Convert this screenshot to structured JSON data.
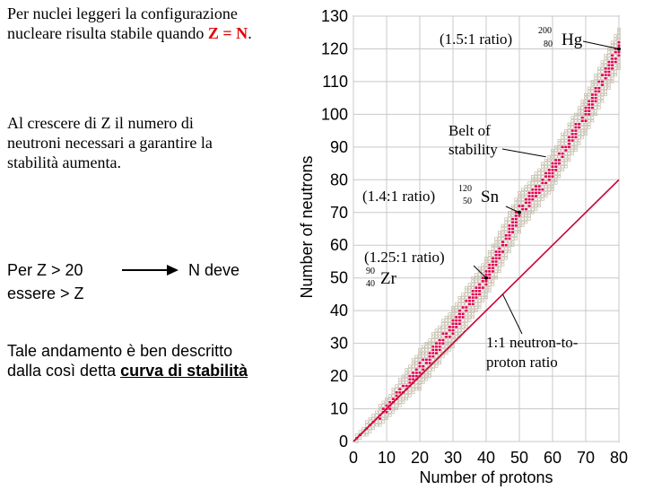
{
  "left_panel": {
    "p1_text": "Per nuclei leggeri la configurazione nucleare risulta stabile quando",
    "p1_highlight": "Z = N",
    "p1_end": ".",
    "p2_text": "Al crescere di Z il numero di neutroni necessari a garantire la stabilità aumenta.",
    "p3_left": "Per Z > 20",
    "p3_right": "N deve",
    "p3_end": "essere > Z",
    "p4_text": "Tale andamento è ben descritto dalla così detta",
    "p4_link": "curva di stabilità"
  },
  "colors": {
    "stable_nuclide": "#e0004e",
    "unstable_nuclide": "#b9b09b",
    "line_1_1": "#cc0033",
    "highlight_text": "#e00000"
  },
  "chart_data": {
    "type": "scatter",
    "xlabel": "Number of protons",
    "ylabel": "Number of neutrons",
    "xlim": [
      0,
      80
    ],
    "ylim": [
      0,
      130
    ],
    "xticks": [
      0,
      10,
      20,
      30,
      40,
      50,
      60,
      70,
      80
    ],
    "yticks": [
      0,
      10,
      20,
      30,
      40,
      50,
      60,
      70,
      80,
      90,
      100,
      110,
      120,
      130
    ],
    "grid": true,
    "series": [
      {
        "name": "1:1 neutron-to-proton ratio",
        "kind": "line",
        "x": [
          0,
          80
        ],
        "y": [
          0,
          80
        ]
      }
    ],
    "belt_center": [
      [
        0,
        0
      ],
      [
        10,
        10
      ],
      [
        20,
        22
      ],
      [
        30,
        35
      ],
      [
        40,
        50
      ],
      [
        50,
        70
      ],
      [
        60,
        83
      ],
      [
        70,
        100
      ],
      [
        80,
        120
      ]
    ],
    "belt_width": 12,
    "annotations": [
      {
        "ratio": "(1.5:1 ratio)",
        "mass": "200",
        "atomic": "80",
        "symbol": "Hg",
        "x": 80,
        "y": 120
      },
      {
        "ratio": "(1.4:1 ratio)",
        "mass": "120",
        "atomic": "50",
        "symbol": "Sn",
        "x": 50,
        "y": 70
      },
      {
        "ratio": "(1.25:1 ratio)",
        "mass": "90",
        "atomic": "40",
        "symbol": "Zr",
        "x": 40,
        "y": 50
      }
    ],
    "belt_label_1": "Belt of",
    "belt_label_2": "stability",
    "line_label_1": "1:1 neutron-to-",
    "line_label_2": "proton ratio"
  }
}
